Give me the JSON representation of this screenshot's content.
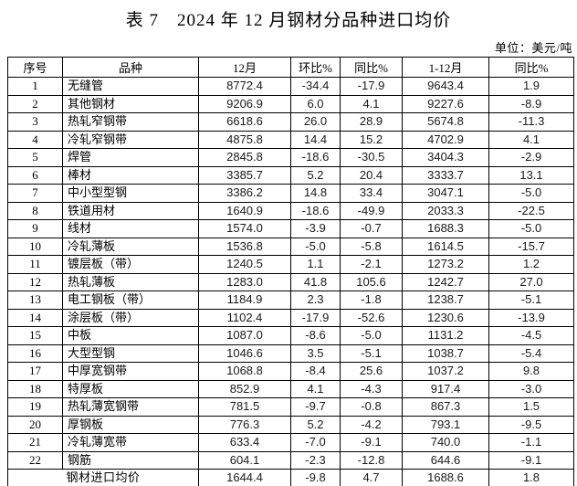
{
  "title": "表 7　2024 年 12 月钢材分品种进口均价",
  "unit_label": "单位：美元/吨",
  "colors": {
    "text": "#000000",
    "number_text": "#1a1a1a",
    "border": "#000000",
    "background": "#ffffff"
  },
  "table": {
    "headers": [
      "序号",
      "品种",
      "12月",
      "环比%",
      "同比%",
      "1-12月",
      "同比%"
    ],
    "rows": [
      [
        "1",
        "无缝管",
        "8772.4",
        "-34.4",
        "-17.9",
        "9643.4",
        "1.9"
      ],
      [
        "2",
        "其他钢材",
        "9206.9",
        "6.0",
        "4.1",
        "9227.6",
        "-8.9"
      ],
      [
        "3",
        "热轧窄钢带",
        "6618.6",
        "26.0",
        "28.9",
        "5674.8",
        "-11.3"
      ],
      [
        "4",
        "冷轧窄钢带",
        "4875.8",
        "14.4",
        "15.2",
        "4702.9",
        "4.1"
      ],
      [
        "5",
        "焊管",
        "2845.8",
        "-18.6",
        "-30.5",
        "3404.3",
        "-2.9"
      ],
      [
        "6",
        "棒材",
        "3385.7",
        "5.2",
        "20.4",
        "3333.7",
        "13.1"
      ],
      [
        "7",
        "中小型型钢",
        "3386.2",
        "14.8",
        "33.4",
        "3047.1",
        "-5.0"
      ],
      [
        "8",
        "铁道用材",
        "1640.9",
        "-18.6",
        "-49.9",
        "2033.3",
        "-22.5"
      ],
      [
        "9",
        "线材",
        "1574.0",
        "-3.9",
        "-0.7",
        "1688.3",
        "-5.0"
      ],
      [
        "10",
        "冷轧薄板",
        "1536.8",
        "-5.0",
        "-5.8",
        "1614.5",
        "-15.7"
      ],
      [
        "11",
        "镀层板（带）",
        "1240.5",
        "1.1",
        "-2.1",
        "1273.2",
        "1.2"
      ],
      [
        "12",
        "热轧薄板",
        "1283.0",
        "41.8",
        "105.6",
        "1242.7",
        "27.0"
      ],
      [
        "13",
        "电工钢板（带）",
        "1184.9",
        "2.3",
        "-1.8",
        "1238.7",
        "-5.1"
      ],
      [
        "14",
        "涂层板（带）",
        "1102.4",
        "-17.9",
        "-52.6",
        "1230.6",
        "-13.9"
      ],
      [
        "15",
        "中板",
        "1087.0",
        "-8.6",
        "-5.0",
        "1131.2",
        "-4.5"
      ],
      [
        "16",
        "大型型钢",
        "1046.6",
        "3.5",
        "-5.1",
        "1038.7",
        "-5.4"
      ],
      [
        "17",
        "中厚宽钢带",
        "1068.8",
        "-8.4",
        "25.6",
        "1037.2",
        "9.8"
      ],
      [
        "18",
        "特厚板",
        "852.9",
        "4.1",
        "-4.3",
        "917.4",
        "-3.0"
      ],
      [
        "19",
        "热轧薄宽钢带",
        "781.5",
        "-9.7",
        "-0.8",
        "867.3",
        "1.5"
      ],
      [
        "20",
        "厚钢板",
        "776.3",
        "5.2",
        "-4.2",
        "793.1",
        "-9.5"
      ],
      [
        "21",
        "冷轧薄宽带",
        "633.4",
        "-7.0",
        "-9.1",
        "740.0",
        "-1.1"
      ],
      [
        "22",
        "钢筋",
        "604.1",
        "-2.3",
        "-12.8",
        "644.6",
        "-9.1"
      ]
    ],
    "footer": {
      "label": "钢材进口均价",
      "values": [
        "1644.4",
        "-9.8",
        "4.7",
        "1688.6",
        "1.8"
      ]
    }
  }
}
